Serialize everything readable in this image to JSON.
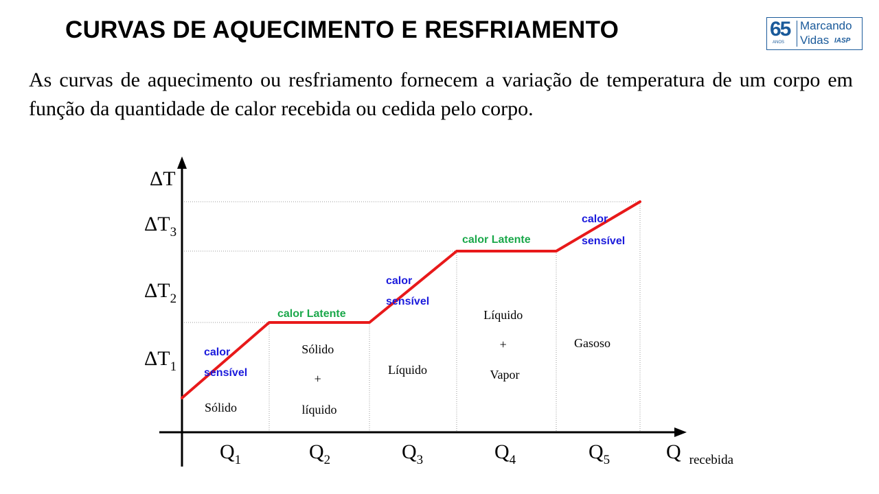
{
  "title": "CURVAS DE AQUECIMENTO E RESFRIAMENTO",
  "intro": "As curvas de aquecimento ou resfriamento fornecem a variação de temperatura de um corpo em função da quantidade de calor recebida ou cedida pelo corpo.",
  "logo": {
    "number": "65",
    "anos": "ANOS",
    "line1": "Marcando",
    "line2": "Vidas",
    "brand": "IASP"
  },
  "diagram": {
    "y_axis": {
      "delta": "Δ",
      "main": "T",
      "levels": [
        {
          "main": "ΔT",
          "sub": "1"
        },
        {
          "main": "ΔT",
          "sub": "2"
        },
        {
          "main": "ΔT",
          "sub": "3"
        }
      ]
    },
    "x_axis": {
      "segments": [
        {
          "main": "Q",
          "sub": "1"
        },
        {
          "main": "Q",
          "sub": "2"
        },
        {
          "main": "Q",
          "sub": "3"
        },
        {
          "main": "Q",
          "sub": "4"
        },
        {
          "main": "Q",
          "sub": "5"
        }
      ],
      "label": "Q",
      "label_sub": "recebida"
    },
    "heat_labels": [
      {
        "lines": [
          "calor",
          "sensível"
        ],
        "kind": "sensible"
      },
      {
        "lines": [
          "calor Latente"
        ],
        "kind": "latent"
      },
      {
        "lines": [
          "calor",
          "sensível"
        ],
        "kind": "sensible"
      },
      {
        "lines": [
          "calor Latente"
        ],
        "kind": "latent"
      },
      {
        "lines": [
          "calor",
          "sensível"
        ],
        "kind": "sensible"
      }
    ],
    "phases": [
      [
        "Sólido"
      ],
      [
        "Sólido",
        "+",
        "líquido"
      ],
      [
        "Líquido"
      ],
      [
        "Líquido",
        "+",
        "Vapor"
      ],
      [
        "Gasoso"
      ]
    ],
    "colors": {
      "curve": "#e8191a",
      "sensible": "#1a1adc",
      "latent": "#1aa84a",
      "axis": "#000000",
      "dotted": "#9a9a9a"
    }
  }
}
